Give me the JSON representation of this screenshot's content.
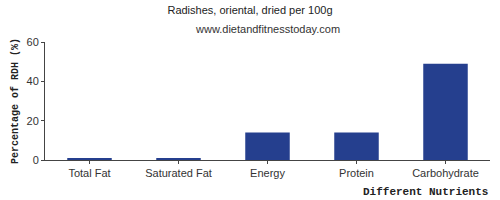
{
  "chart_data": {
    "type": "bar",
    "title": "Radishes, oriental, dried per 100g",
    "subtitle": "www.dietandfitnesstoday.com",
    "x_label": "Different Nutrients",
    "y_label": "Percentage of RDH (%)",
    "categories": [
      "Total Fat",
      "Saturated Fat",
      "Energy",
      "Protein",
      "Carbohydrate"
    ],
    "values": [
      1,
      1,
      14,
      14,
      49
    ],
    "color": "#253f8e",
    "ylim": [
      0,
      60
    ],
    "yticks": [
      0,
      20,
      40,
      60
    ],
    "grid": false
  }
}
